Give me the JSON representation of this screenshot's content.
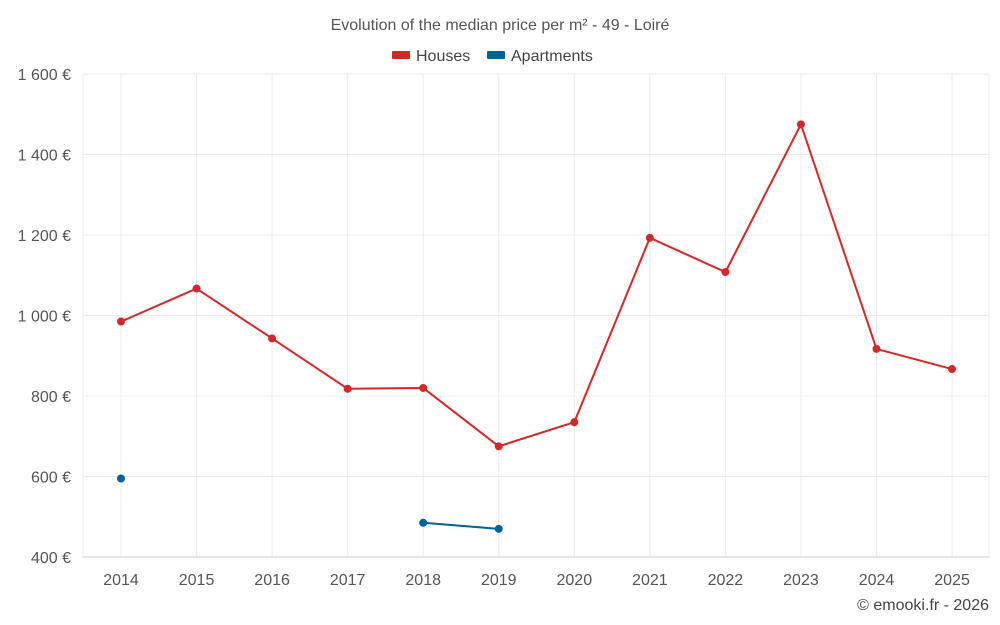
{
  "chart_data": {
    "type": "line",
    "title": "Evolution of the median price per m² - 49 - Loiré",
    "x": [
      "2014",
      "2015",
      "2016",
      "2017",
      "2018",
      "2019",
      "2020",
      "2021",
      "2022",
      "2023",
      "2024",
      "2025"
    ],
    "y_ticks": [
      "400 €",
      "600 €",
      "800 €",
      "1 000 €",
      "1 200 €",
      "1 400 €",
      "1 600 €"
    ],
    "ylim": [
      400,
      1600
    ],
    "grid": true,
    "legend_position": "top-center",
    "series": [
      {
        "name": "Houses",
        "color": "#d62728",
        "values": [
          985,
          1067,
          943,
          818,
          820,
          675,
          735,
          1193,
          1108,
          1475,
          917,
          867
        ]
      },
      {
        "name": "Apartments",
        "color": "#00629b",
        "values": [
          595,
          null,
          null,
          null,
          485,
          470,
          null,
          null,
          null,
          null,
          null,
          null
        ]
      }
    ]
  },
  "credit": "© emooki.fr - 2026"
}
